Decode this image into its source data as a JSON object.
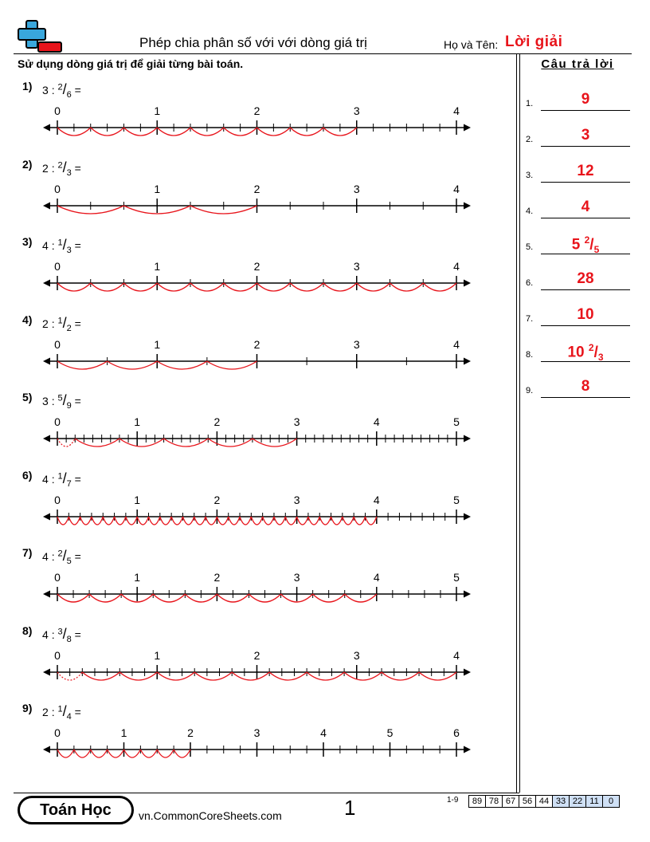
{
  "header": {
    "title": "Phép chia phân số với với dòng giá trị",
    "name_label": "Họ và Tên:",
    "name_value": "Lời giải"
  },
  "instructions": "Sử dụng dòng giá trị để giải từng bài toán.",
  "answers_title": "Câu trả lời",
  "answers": [
    {
      "num": "1.",
      "whole": "9"
    },
    {
      "num": "2.",
      "whole": "3"
    },
    {
      "num": "3.",
      "whole": "12"
    },
    {
      "num": "4.",
      "whole": "4"
    },
    {
      "num": "5.",
      "whole": "5",
      "n": "2",
      "d": "5"
    },
    {
      "num": "6.",
      "whole": "28"
    },
    {
      "num": "7.",
      "whole": "10"
    },
    {
      "num": "8.",
      "whole": "10",
      "n": "2",
      "d": "3"
    },
    {
      "num": "9.",
      "whole": "8"
    }
  ],
  "problems": [
    {
      "label": "1)",
      "whole": "3",
      "op": ":",
      "n": "2",
      "d": "6",
      "eq": "=",
      "max": 4,
      "div": 6,
      "jump": 2,
      "value": 3,
      "dashed": false,
      "tick_labels": [
        "0",
        "1",
        "2",
        "3",
        "4"
      ]
    },
    {
      "label": "2)",
      "whole": "2",
      "op": ":",
      "n": "2",
      "d": "3",
      "eq": "=",
      "max": 4,
      "div": 3,
      "jump": 2,
      "value": 2,
      "dashed": false,
      "tick_labels": [
        "0",
        "1",
        "2",
        "3",
        "4"
      ]
    },
    {
      "label": "3)",
      "whole": "4",
      "op": ":",
      "n": "1",
      "d": "3",
      "eq": "=",
      "max": 4,
      "div": 3,
      "jump": 1,
      "value": 4,
      "dashed": false,
      "tick_labels": [
        "0",
        "1",
        "2",
        "3",
        "4"
      ]
    },
    {
      "label": "4)",
      "whole": "2",
      "op": ":",
      "n": "1",
      "d": "2",
      "eq": "=",
      "max": 4,
      "div": 2,
      "jump": 1,
      "value": 2,
      "dashed": false,
      "tick_labels": [
        "0",
        "1",
        "2",
        "3",
        "4"
      ]
    },
    {
      "label": "5)",
      "whole": "3",
      "op": ":",
      "n": "5",
      "d": "9",
      "eq": "=",
      "max": 5,
      "div": 9,
      "jump": 5,
      "value": 3,
      "dashed": true,
      "tick_labels": [
        "0",
        "1",
        "2",
        "3",
        "4",
        "5"
      ]
    },
    {
      "label": "6)",
      "whole": "4",
      "op": ":",
      "n": "1",
      "d": "7",
      "eq": "=",
      "max": 5,
      "div": 7,
      "jump": 1,
      "value": 4,
      "dashed": false,
      "tick_labels": [
        "0",
        "1",
        "2",
        "3",
        "4",
        "5"
      ]
    },
    {
      "label": "7)",
      "whole": "4",
      "op": ":",
      "n": "2",
      "d": "5",
      "eq": "=",
      "max": 5,
      "div": 5,
      "jump": 2,
      "value": 4,
      "dashed": false,
      "tick_labels": [
        "0",
        "1",
        "2",
        "3",
        "4",
        "5"
      ]
    },
    {
      "label": "8)",
      "whole": "4",
      "op": ":",
      "n": "3",
      "d": "8",
      "eq": "=",
      "max": 4,
      "div": 8,
      "jump": 3,
      "value": 4,
      "dashed": true,
      "tick_labels": [
        "0",
        "1",
        "2",
        "3",
        "4"
      ]
    },
    {
      "label": "9)",
      "whole": "2",
      "op": ":",
      "n": "1",
      "d": "4",
      "eq": "=",
      "max": 6,
      "div": 4,
      "jump": 1,
      "value": 2,
      "dashed": false,
      "tick_labels": [
        "0",
        "1",
        "2",
        "3",
        "4",
        "5",
        "6"
      ]
    }
  ],
  "footer": {
    "badge": "Toán Học",
    "url": "vn.CommonCoreSheets.com",
    "page": "1",
    "score_label": "1-9",
    "scores": [
      "89",
      "78",
      "67",
      "56",
      "44",
      "33",
      "22",
      "11",
      "0"
    ]
  },
  "colors": {
    "accent": "#e8141b",
    "logo_blue": "#39a7dc",
    "highlight": "#cfe0f5"
  }
}
